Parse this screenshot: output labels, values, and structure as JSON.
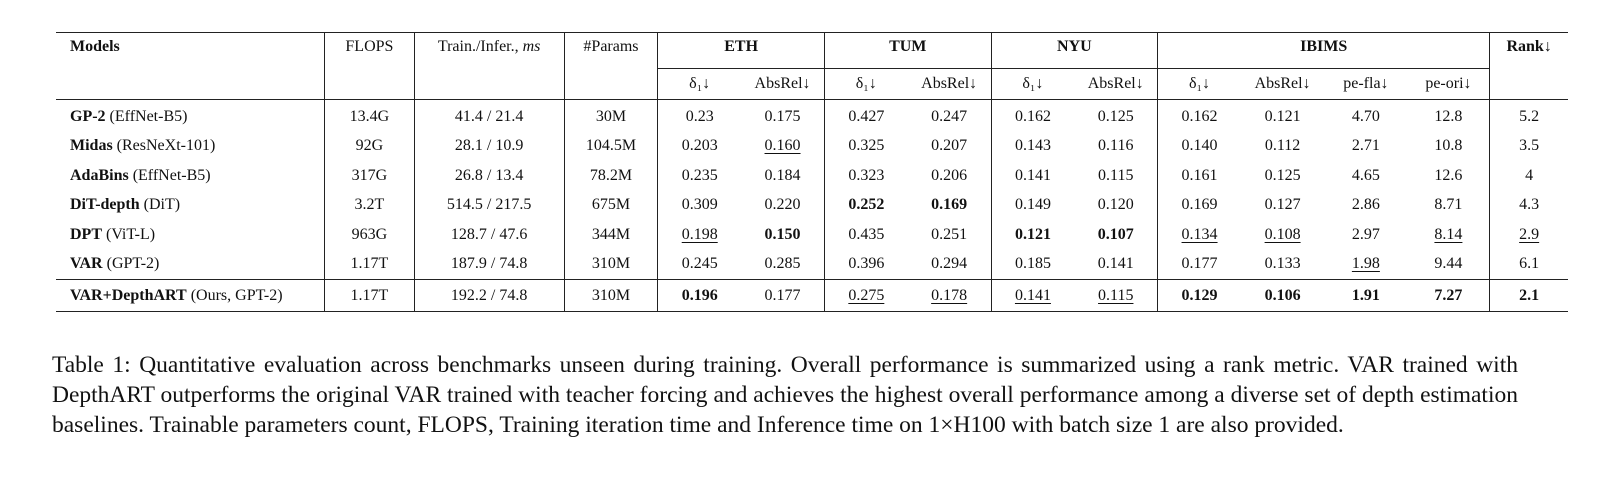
{
  "table": {
    "header": {
      "models": "Models",
      "flops": "FLOPS",
      "train_infer": "Train./Infer., ",
      "train_infer_unit": "ms",
      "params": "#Params",
      "groups": [
        "ETH",
        "TUM",
        "NYU",
        "IBIMS"
      ],
      "rank": "Rank↓",
      "sub": {
        "delta1": "δ₁↓",
        "absrel": "AbsRel↓",
        "pe_fla": "pe-fla↓",
        "pe_ori": "pe-ori↓"
      }
    },
    "rows": [
      {
        "name": "GP-2",
        "backbone": " (EffNet-B5)",
        "flops": "13.4G",
        "time": "41.4 / 21.4",
        "params": "30M",
        "eth_d1": "0.23",
        "eth_abs": "0.175",
        "tum_d1": "0.427",
        "tum_abs": "0.247",
        "nyu_d1": "0.162",
        "nyu_abs": "0.125",
        "ibims_d1": "0.162",
        "ibims_abs": "0.121",
        "pe_fla": "4.70",
        "pe_ori": "12.8",
        "rank": "5.2"
      },
      {
        "name": "Midas",
        "backbone": " (ResNeXt-101)",
        "flops": "92G",
        "time": "28.1 / 10.9",
        "params": "104.5M",
        "eth_d1": "0.203",
        "eth_abs": "0.160",
        "tum_d1": "0.325",
        "tum_abs": "0.207",
        "nyu_d1": "0.143",
        "nyu_abs": "0.116",
        "ibims_d1": "0.140",
        "ibims_abs": "0.112",
        "pe_fla": "2.71",
        "pe_ori": "10.8",
        "rank": "3.5"
      },
      {
        "name": "AdaBins",
        "backbone": " (EffNet-B5)",
        "flops": "317G",
        "time": "26.8 / 13.4",
        "params": "78.2M",
        "eth_d1": "0.235",
        "eth_abs": "0.184",
        "tum_d1": "0.323",
        "tum_abs": "0.206",
        "nyu_d1": "0.141",
        "nyu_abs": "0.115",
        "ibims_d1": "0.161",
        "ibims_abs": "0.125",
        "pe_fla": "4.65",
        "pe_ori": "12.6",
        "rank": "4"
      },
      {
        "name": "DiT-depth",
        "backbone": " (DiT)",
        "flops": "3.2T",
        "time": "514.5 / 217.5",
        "params": "675M",
        "eth_d1": "0.309",
        "eth_abs": "0.220",
        "tum_d1": "0.252",
        "tum_abs": "0.169",
        "nyu_d1": "0.149",
        "nyu_abs": "0.120",
        "ibims_d1": "0.169",
        "ibims_abs": "0.127",
        "pe_fla": "2.86",
        "pe_ori": "8.71",
        "rank": "4.3"
      },
      {
        "name": "DPT",
        "backbone": " (ViT-L)",
        "flops": "963G",
        "time": "128.7 / 47.6",
        "params": "344M",
        "eth_d1": "0.198",
        "eth_abs": "0.150",
        "tum_d1": "0.435",
        "tum_abs": "0.251",
        "nyu_d1": "0.121",
        "nyu_abs": "0.107",
        "ibims_d1": "0.134",
        "ibims_abs": "0.108",
        "pe_fla": "2.97",
        "pe_ori": "8.14",
        "rank": "2.9"
      },
      {
        "name": "VAR",
        "backbone": " (GPT-2)",
        "flops": "1.17T",
        "time": "187.9 / 74.8",
        "params": "310M",
        "eth_d1": "0.245",
        "eth_abs": "0.285",
        "tum_d1": "0.396",
        "tum_abs": "0.294",
        "nyu_d1": "0.185",
        "nyu_abs": "0.141",
        "ibims_d1": "0.177",
        "ibims_abs": "0.133",
        "pe_fla": "1.98",
        "pe_ori": "9.44",
        "rank": "6.1"
      }
    ],
    "ours": {
      "name": "VAR+DepthART",
      "backbone": " (Ours, GPT-2)",
      "flops": "1.17T",
      "time": "192.2 / 74.8",
      "params": "310M",
      "eth_d1": "0.196",
      "eth_abs": "0.177",
      "tum_d1": "0.275",
      "tum_abs": "0.178",
      "nyu_d1": "0.141",
      "nyu_abs": "0.115",
      "ibims_d1": "0.129",
      "ibims_abs": "0.106",
      "pe_fla": "1.91",
      "pe_ori": "7.27",
      "rank": "2.1"
    }
  },
  "caption": "Table 1: Quantitative evaluation across benchmarks unseen during training. Overall performance is summarized using a rank metric. VAR trained with DepthART outperforms the original VAR trained with teacher forcing and achieves the highest overall performance among a diverse set of depth estimation baselines. Trainable parameters count, FLOPS, Training iteration time and Inference time on 1×H100 with batch size 1 are also provided."
}
